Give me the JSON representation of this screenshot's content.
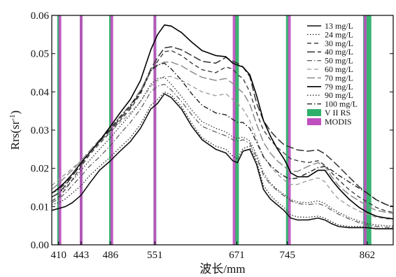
{
  "chart_data": {
    "type": "line",
    "title": "",
    "xlabel": "波长/mm",
    "ylabel": "Rrs(sr⁻¹)",
    "xlim": [
      400,
      900
    ],
    "ylim": [
      0,
      0.06
    ],
    "yticks": [
      "0.00",
      "0.01",
      "0.02",
      "0.03",
      "0.04",
      "0.05",
      "0.06"
    ],
    "yticks_values": [
      0,
      0.01,
      0.02,
      0.03,
      0.04,
      0.05,
      0.06
    ],
    "xticks": [
      "410",
      "443",
      "486",
      "551",
      "671",
      "745",
      "862"
    ],
    "xticks_values": [
      410,
      443,
      486,
      551,
      671,
      745,
      862
    ],
    "legend_position": "top-right",
    "x": [
      400,
      410,
      420,
      430,
      443,
      455,
      470,
      486,
      500,
      515,
      530,
      545,
      555,
      565,
      575,
      590,
      605,
      620,
      640,
      655,
      665,
      672,
      680,
      690,
      700,
      710,
      720,
      730,
      740,
      745,
      750,
      760,
      775,
      790,
      800,
      810,
      820,
      835,
      850,
      862,
      875,
      890,
      900
    ],
    "series": [
      {
        "name": "13 mg/L",
        "style": "solid",
        "color": "#111111",
        "width": 1.6,
        "values": [
          0.009,
          0.0095,
          0.01,
          0.011,
          0.013,
          0.016,
          0.0195,
          0.022,
          0.0245,
          0.027,
          0.0305,
          0.0355,
          0.037,
          0.0395,
          0.0385,
          0.0355,
          0.031,
          0.0275,
          0.025,
          0.024,
          0.022,
          0.0215,
          0.0245,
          0.025,
          0.021,
          0.0145,
          0.012,
          0.0105,
          0.009,
          0.008,
          0.007,
          0.0065,
          0.0065,
          0.007,
          0.0065,
          0.0055,
          0.0048,
          0.0045,
          0.0045,
          0.0045,
          0.0042,
          0.0042,
          0.0042
        ]
      },
      {
        "name": "24 mg/L",
        "style": "dotted",
        "color": "#222222",
        "width": 1.3,
        "values": [
          0.0105,
          0.011,
          0.012,
          0.0135,
          0.0155,
          0.018,
          0.0205,
          0.023,
          0.0255,
          0.028,
          0.0315,
          0.0365,
          0.038,
          0.04,
          0.0392,
          0.0362,
          0.0318,
          0.028,
          0.0258,
          0.025,
          0.0232,
          0.0225,
          0.0252,
          0.0258,
          0.0218,
          0.0155,
          0.013,
          0.0112,
          0.0098,
          0.0088,
          0.0078,
          0.0073,
          0.0072,
          0.0075,
          0.007,
          0.006,
          0.0052,
          0.0048,
          0.0048,
          0.0046,
          0.0043,
          0.0043,
          0.0043
        ]
      },
      {
        "name": "30 mg/L",
        "style": "dashed",
        "color": "#333333",
        "width": 1.3,
        "values": [
          0.0115,
          0.0125,
          0.0145,
          0.017,
          0.0205,
          0.0235,
          0.0265,
          0.0295,
          0.0325,
          0.0355,
          0.0395,
          0.0455,
          0.048,
          0.0505,
          0.0508,
          0.0495,
          0.0475,
          0.0458,
          0.045,
          0.0465,
          0.046,
          0.0445,
          0.0435,
          0.04,
          0.0345,
          0.03,
          0.0275,
          0.0255,
          0.024,
          0.0232,
          0.0225,
          0.022,
          0.0215,
          0.022,
          0.0208,
          0.0188,
          0.017,
          0.0145,
          0.0125,
          0.0112,
          0.0098,
          0.0088,
          0.0085
        ]
      },
      {
        "name": "40 mg/L",
        "style": "longdash",
        "color": "#333333",
        "width": 1.5,
        "values": [
          0.0125,
          0.0135,
          0.0155,
          0.018,
          0.021,
          0.024,
          0.027,
          0.03,
          0.033,
          0.036,
          0.04,
          0.046,
          0.049,
          0.0515,
          0.0518,
          0.051,
          0.0495,
          0.048,
          0.0475,
          0.049,
          0.048,
          0.0475,
          0.0465,
          0.044,
          0.037,
          0.0325,
          0.0298,
          0.0278,
          0.0262,
          0.0258,
          0.0255,
          0.0248,
          0.0245,
          0.0248,
          0.0238,
          0.0222,
          0.0205,
          0.0178,
          0.0152,
          0.0135,
          0.0118,
          0.0105,
          0.01
        ]
      },
      {
        "name": "50 mg/L",
        "style": "dashdot",
        "color": "#555555",
        "width": 1.2,
        "values": [
          0.011,
          0.012,
          0.0135,
          0.0155,
          0.018,
          0.0205,
          0.023,
          0.026,
          0.029,
          0.032,
          0.0355,
          0.04,
          0.0415,
          0.042,
          0.0405,
          0.0375,
          0.034,
          0.031,
          0.0295,
          0.0285,
          0.0275,
          0.027,
          0.0275,
          0.0265,
          0.0228,
          0.0182,
          0.0158,
          0.0142,
          0.0128,
          0.0122,
          0.0115,
          0.0108,
          0.0105,
          0.0108,
          0.0102,
          0.009,
          0.008,
          0.0068,
          0.0058,
          0.0052,
          0.0048,
          0.0046,
          0.0045
        ]
      },
      {
        "name": "60 mg/L",
        "style": "dashed",
        "color": "#9a9a9a",
        "width": 1.3,
        "values": [
          0.0155,
          0.017,
          0.0185,
          0.02,
          0.022,
          0.0245,
          0.027,
          0.0295,
          0.032,
          0.0345,
          0.0375,
          0.0415,
          0.043,
          0.044,
          0.044,
          0.043,
          0.0415,
          0.04,
          0.039,
          0.0395,
          0.038,
          0.037,
          0.0355,
          0.0325,
          0.0275,
          0.0232,
          0.0205,
          0.0185,
          0.017,
          0.0162,
          0.0158,
          0.0158,
          0.0168,
          0.0175,
          0.0165,
          0.014,
          0.012,
          0.0102,
          0.0088,
          0.008,
          0.0072,
          0.0068,
          0.0066
        ]
      },
      {
        "name": "70 mg/L",
        "style": "longdash",
        "color": "#8c8c8c",
        "width": 1.5,
        "values": [
          0.0145,
          0.016,
          0.0178,
          0.0195,
          0.022,
          0.0245,
          0.0275,
          0.0305,
          0.0335,
          0.0365,
          0.0405,
          0.0455,
          0.047,
          0.0478,
          0.0478,
          0.0468,
          0.0452,
          0.0438,
          0.043,
          0.0435,
          0.0422,
          0.041,
          0.0398,
          0.0368,
          0.0315,
          0.0268,
          0.024,
          0.022,
          0.0205,
          0.0198,
          0.0192,
          0.0192,
          0.0205,
          0.0215,
          0.0205,
          0.0178,
          0.0155,
          0.0132,
          0.0115,
          0.0102,
          0.009,
          0.0085,
          0.0082
        ]
      },
      {
        "name": "79 mg/L",
        "style": "solid",
        "color": "#000000",
        "width": 1.6,
        "values": [
          0.0135,
          0.0148,
          0.0165,
          0.0185,
          0.0215,
          0.024,
          0.0272,
          0.031,
          0.0345,
          0.038,
          0.043,
          0.051,
          0.055,
          0.0575,
          0.0572,
          0.0555,
          0.053,
          0.0508,
          0.0495,
          0.0492,
          0.0475,
          0.047,
          0.0465,
          0.0445,
          0.039,
          0.0325,
          0.0285,
          0.0252,
          0.0225,
          0.0208,
          0.0188,
          0.0178,
          0.0178,
          0.0195,
          0.0195,
          0.017,
          0.0148,
          0.012,
          0.0098,
          0.0085,
          0.0075,
          0.007,
          0.0068
        ]
      },
      {
        "name": "90 mg/L",
        "style": "dotted",
        "color": "#333333",
        "width": 1.3,
        "values": [
          0.0125,
          0.0135,
          0.015,
          0.0168,
          0.0195,
          0.022,
          0.025,
          0.028,
          0.031,
          0.034,
          0.0375,
          0.042,
          0.0435,
          0.0438,
          0.042,
          0.0388,
          0.0352,
          0.0322,
          0.0305,
          0.0295,
          0.0282,
          0.0278,
          0.0282,
          0.0272,
          0.0235,
          0.0188,
          0.0162,
          0.0145,
          0.0132,
          0.0125,
          0.0118,
          0.0112,
          0.011,
          0.0115,
          0.0108,
          0.0095,
          0.0085,
          0.0072,
          0.0062,
          0.0056,
          0.0052,
          0.005,
          0.0049
        ]
      },
      {
        "name": "100 mg/L",
        "style": "dashdot",
        "color": "#222222",
        "width": 1.4,
        "values": [
          0.0135,
          0.0145,
          0.016,
          0.0185,
          0.0215,
          0.024,
          0.027,
          0.0305,
          0.0335,
          0.0365,
          0.04,
          0.0455,
          0.047,
          0.0475,
          0.046,
          0.043,
          0.0395,
          0.0365,
          0.0345,
          0.034,
          0.0328,
          0.032,
          0.032,
          0.0305,
          0.0268,
          0.023,
          0.0208,
          0.0192,
          0.018,
          0.0175,
          0.0172,
          0.0175,
          0.0188,
          0.0202,
          0.0205,
          0.0195,
          0.0182,
          0.0165,
          0.0148,
          0.0135,
          0.0118,
          0.0105,
          0.01
        ]
      }
    ],
    "bands": [
      {
        "sensor": "V II RS",
        "color": "#2eb06a",
        "centers": [
          410,
          443,
          486,
          551,
          671,
          745,
          862
        ],
        "widths": [
          4,
          4,
          4,
          4,
          6,
          4,
          12
        ]
      },
      {
        "sensor": "MODIS",
        "color": "#c04fc0",
        "centers": [
          412,
          443,
          488,
          551,
          667,
          748,
          859
        ],
        "widths": [
          4,
          4,
          4,
          4,
          4,
          4,
          4
        ]
      }
    ]
  }
}
